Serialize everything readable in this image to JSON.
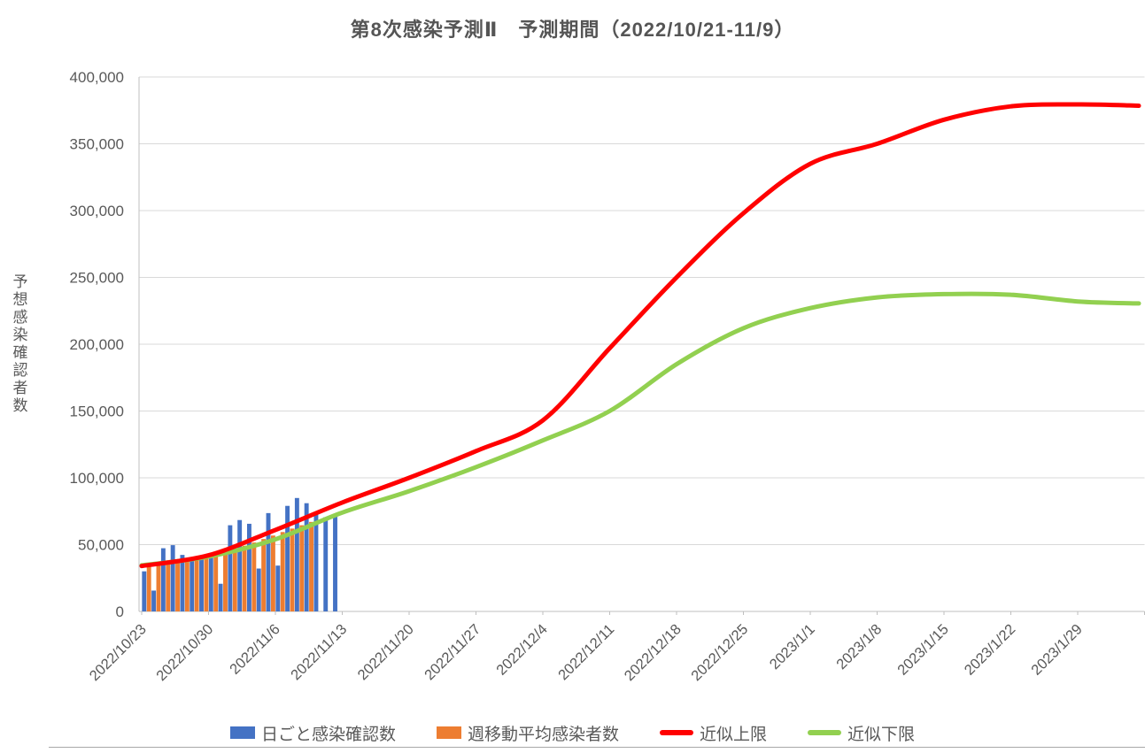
{
  "chart_data": {
    "type": "bar",
    "subtype": "combo-bar-line",
    "title": "第8次感染予測Ⅱ　予測期間（2022/10/21-11/9）",
    "xlabel": "",
    "ylabel": "予想感染確認者数",
    "y_axis": {
      "min": 0,
      "max": 400000,
      "tick_step": 50000,
      "tick_values": [
        0,
        50000,
        100000,
        150000,
        200000,
        250000,
        300000,
        350000,
        400000
      ],
      "grid": true
    },
    "x_axis": {
      "tick_labels": [
        "2022/10/23",
        "2022/10/30",
        "2022/11/6",
        "2022/11/13",
        "2022/11/20",
        "2022/11/27",
        "2022/12/4",
        "2022/12/11",
        "2022/12/18",
        "2022/12/25",
        "2023/1/1",
        "2023/1/8",
        "2023/1/15",
        "2023/1/22",
        "2023/1/29"
      ],
      "label_rotation_deg": -45
    },
    "series": [
      {
        "name": "日ごと感染確認数",
        "type": "bar",
        "color": "#4472C4",
        "dates": [
          "2022/10/23",
          "2022/10/24",
          "2022/10/25",
          "2022/10/26",
          "2022/10/27",
          "2022/10/28",
          "2022/10/29",
          "2022/10/30",
          "2022/10/31",
          "2022/11/1",
          "2022/11/2",
          "2022/11/3",
          "2022/11/4",
          "2022/11/5",
          "2022/11/6",
          "2022/11/7",
          "2022/11/8",
          "2022/11/9",
          "2022/11/10",
          "2022/11/11",
          "2022/11/12"
        ],
        "values": [
          30000,
          15600,
          47300,
          49600,
          42300,
          39500,
          39500,
          41900,
          20700,
          64500,
          68400,
          65600,
          32100,
          73600,
          34300,
          79000,
          84900,
          81000,
          73500,
          70500,
          72000
        ]
      },
      {
        "name": "週移動平均感染者数",
        "type": "bar",
        "color": "#ED7D31",
        "dates": [
          "2022/10/23",
          "2022/10/24",
          "2022/10/25",
          "2022/10/26",
          "2022/10/27",
          "2022/10/28",
          "2022/10/29",
          "2022/10/30",
          "2022/10/31",
          "2022/11/1",
          "2022/11/2",
          "2022/11/3",
          "2022/11/4",
          "2022/11/5",
          "2022/11/6",
          "2022/11/7",
          "2022/11/8",
          "2022/11/9"
        ],
        "values": [
          33500,
          34400,
          35400,
          36600,
          37900,
          39300,
          40800,
          42400,
          44200,
          46600,
          49200,
          51600,
          54200,
          56800,
          59400,
          62000,
          64500,
          67000
        ]
      },
      {
        "name": "近似上限",
        "type": "line",
        "color": "#FF0000",
        "x_dates": [
          "2022/10/23",
          "2022/10/30",
          "2022/11/6",
          "2022/11/13",
          "2022/11/20",
          "2022/11/27",
          "2022/12/4",
          "2022/12/11",
          "2022/12/18",
          "2022/12/25",
          "2023/1/1",
          "2023/1/8",
          "2023/1/15",
          "2023/1/22",
          "2023/1/29",
          "2023/2/4"
        ],
        "values": [
          34000,
          42000,
          61000,
          81500,
          100000,
          120000,
          143000,
          197000,
          250000,
          298000,
          335000,
          350000,
          368000,
          378000,
          379500,
          378500
        ]
      },
      {
        "name": "近似下限",
        "type": "line",
        "color": "#92D050",
        "x_dates": [
          "2022/10/23",
          "2022/10/30",
          "2022/11/6",
          "2022/11/13",
          "2022/11/20",
          "2022/11/27",
          "2022/12/4",
          "2022/12/11",
          "2022/12/18",
          "2022/12/25",
          "2023/1/1",
          "2023/1/8",
          "2023/1/15",
          "2023/1/22",
          "2023/1/29",
          "2023/2/4"
        ],
        "values": [
          34500,
          41000,
          54000,
          74000,
          90000,
          108000,
          128000,
          150000,
          185000,
          212000,
          227000,
          235000,
          237500,
          237000,
          232000,
          230500
        ]
      }
    ],
    "legend_position": "bottom"
  },
  "legend": {
    "items": [
      {
        "label": "日ごと感染確認数",
        "color": "#4472C4",
        "marker": "rect"
      },
      {
        "label": "週移動平均感染者数",
        "color": "#ED7D31",
        "marker": "rect"
      },
      {
        "label": "近似上限",
        "color": "#FF0000",
        "marker": "line"
      },
      {
        "label": "近似下限",
        "color": "#92D050",
        "marker": "line"
      }
    ]
  },
  "colors": {
    "grid": "#D9D9D9",
    "axis": "#BFBFBF",
    "tick_text": "#595959",
    "title_text": "#555555"
  }
}
